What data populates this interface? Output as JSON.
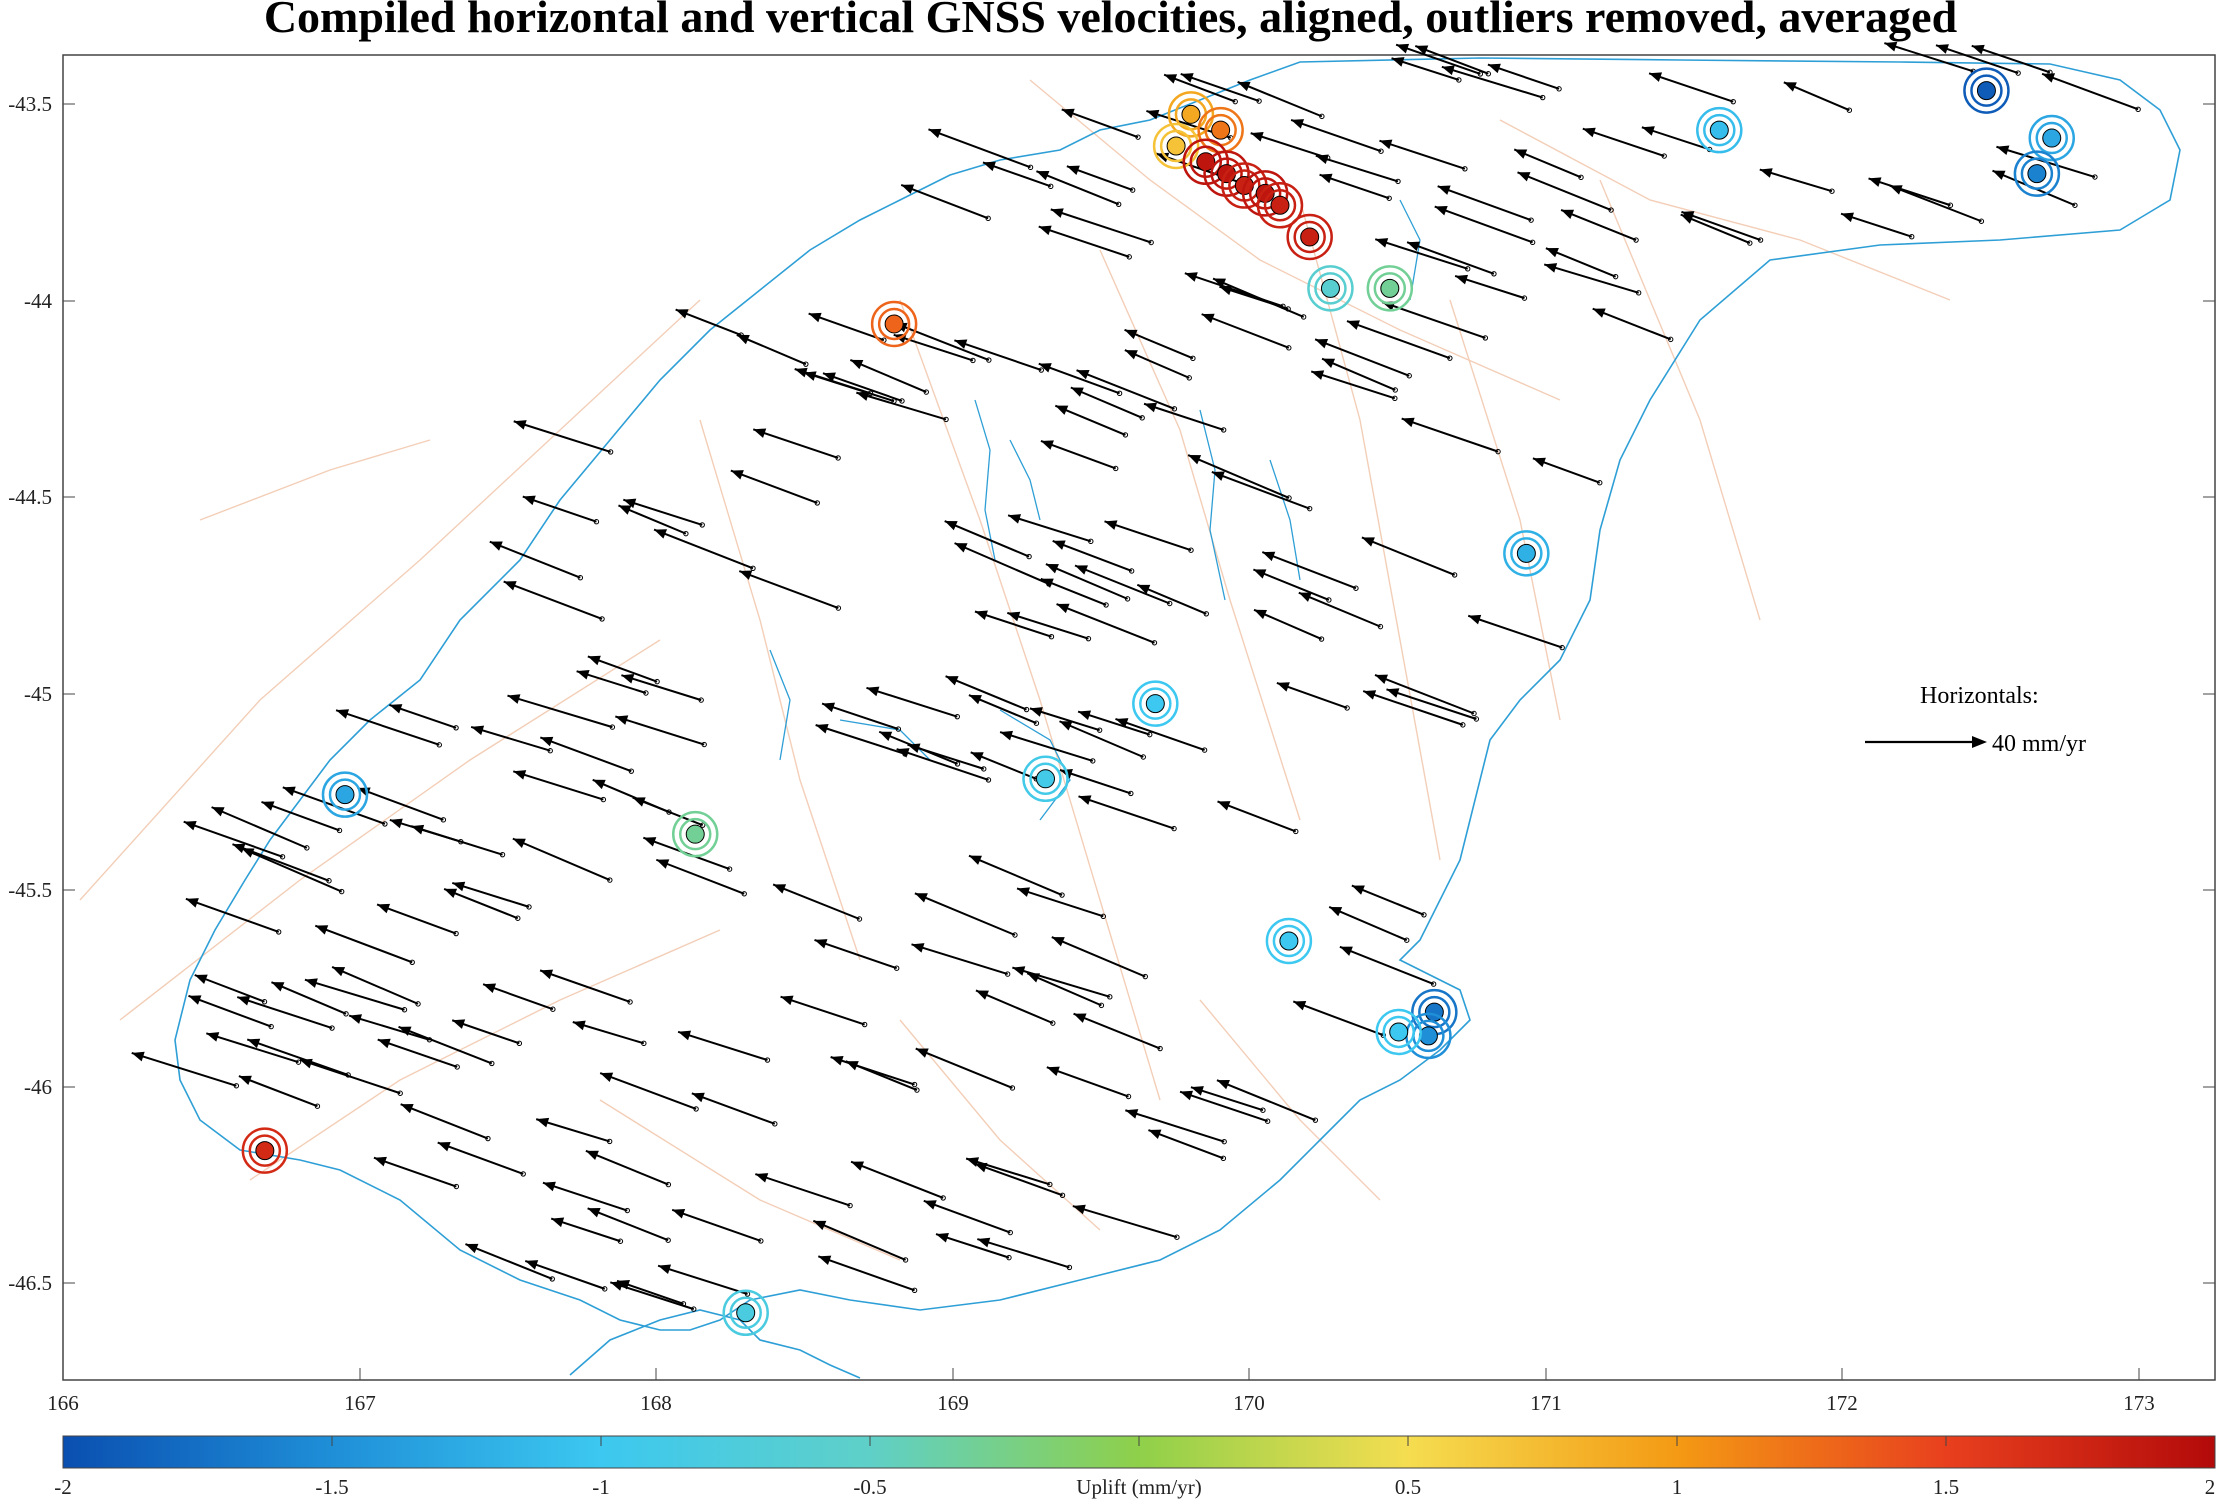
{
  "title": "Compiled horizontal and vertical GNSS velocities, aligned, outliers removed, averaged",
  "map": {
    "x_ticks": [
      "166",
      "167",
      "168",
      "169",
      "170",
      "171",
      "172",
      "173"
    ],
    "y_ticks": [
      "-43.5",
      "-44",
      "-44.5",
      "-45",
      "-45.5",
      "-46",
      "-46.5"
    ],
    "lon_range": [
      166,
      173.25
    ],
    "lat_range": [
      -46.75,
      -43.4
    ],
    "coastline_color": "#2e9fd6",
    "fault_color": "#f2c9b0",
    "arrow_color": "#000000"
  },
  "scale": {
    "heading": "Horizontals:",
    "label": "40 mm/yr"
  },
  "colorbar": {
    "ticks": [
      "-2",
      "-1.5",
      "-1",
      "-0.5",
      "0",
      "0.5",
      "1",
      "1.5",
      "2"
    ],
    "label": "Uplift (mm/yr)",
    "range": [
      -2,
      2
    ],
    "colors": [
      "#0a4fb0",
      "#1f8fd8",
      "#3cc8f0",
      "#5fd0c8",
      "#8fd04a",
      "#f5dd50",
      "#f49a14",
      "#e8401e",
      "#b30a0a"
    ]
  },
  "chart_data": {
    "type": "scatter",
    "x_axis": "longitude",
    "y_axis": "latitude",
    "uplift_sites": [
      {
        "lon": 172.48,
        "lat": -43.49,
        "uplift": -1.9
      },
      {
        "lon": 172.7,
        "lat": -43.61,
        "uplift": -1.3
      },
      {
        "lon": 172.65,
        "lat": -43.7,
        "uplift": -1.6
      },
      {
        "lon": 171.58,
        "lat": -43.59,
        "uplift": -1.1
      },
      {
        "lon": 169.8,
        "lat": -43.55,
        "uplift": 0.9
      },
      {
        "lon": 169.75,
        "lat": -43.63,
        "uplift": 0.7
      },
      {
        "lon": 169.9,
        "lat": -43.59,
        "uplift": 1.2
      },
      {
        "lon": 169.85,
        "lat": -43.67,
        "uplift": 1.9
      },
      {
        "lon": 169.92,
        "lat": -43.7,
        "uplift": 1.9
      },
      {
        "lon": 169.98,
        "lat": -43.73,
        "uplift": 1.8
      },
      {
        "lon": 170.05,
        "lat": -43.75,
        "uplift": 1.9
      },
      {
        "lon": 170.1,
        "lat": -43.78,
        "uplift": 1.8
      },
      {
        "lon": 170.2,
        "lat": -43.86,
        "uplift": 1.8
      },
      {
        "lon": 170.27,
        "lat": -43.99,
        "uplift": -0.6
      },
      {
        "lon": 170.47,
        "lat": -43.99,
        "uplift": -0.3
      },
      {
        "lon": 168.8,
        "lat": -44.08,
        "uplift": 1.3
      },
      {
        "lon": 170.93,
        "lat": -44.66,
        "uplift": -1.2
      },
      {
        "lon": 169.68,
        "lat": -45.04,
        "uplift": -1.0
      },
      {
        "lon": 169.31,
        "lat": -45.23,
        "uplift": -0.9
      },
      {
        "lon": 166.95,
        "lat": -45.27,
        "uplift": -1.3
      },
      {
        "lon": 168.13,
        "lat": -45.37,
        "uplift": -0.3
      },
      {
        "lon": 170.13,
        "lat": -45.64,
        "uplift": -1.0
      },
      {
        "lon": 170.62,
        "lat": -45.82,
        "uplift": -1.7
      },
      {
        "lon": 170.6,
        "lat": -45.88,
        "uplift": -1.5
      },
      {
        "lon": 170.5,
        "lat": -45.87,
        "uplift": -1.0
      },
      {
        "lon": 166.68,
        "lat": -46.17,
        "uplift": 1.7
      },
      {
        "lon": 168.3,
        "lat": -46.58,
        "uplift": -0.8
      }
    ],
    "velocity_scale_mm_per_yr": 40
  }
}
